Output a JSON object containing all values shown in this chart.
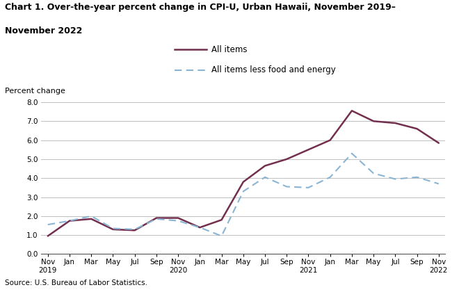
{
  "title_line1": "Chart 1. Over-the-year percent change in CPI-U, Urban Hawaii, November 2019–",
  "title_line2": "November 2022",
  "ylabel": "Percent change",
  "source": "Source: U.S. Bureau of Labor Statistics.",
  "ylim": [
    0.0,
    8.0
  ],
  "yticks": [
    0.0,
    1.0,
    2.0,
    3.0,
    4.0,
    5.0,
    6.0,
    7.0,
    8.0
  ],
  "x_labels": [
    "Nov\n2019",
    "Jan",
    "Mar",
    "May",
    "Jul",
    "Sep",
    "Nov\n2020",
    "Jan",
    "Mar",
    "May",
    "Jul",
    "Sep",
    "Nov\n2021",
    "Jan",
    "Mar",
    "May",
    "Jul",
    "Sep",
    "Nov\n2022"
  ],
  "all_items": [
    0.95,
    1.75,
    1.85,
    1.3,
    1.25,
    1.9,
    1.9,
    1.4,
    1.8,
    3.8,
    4.65,
    5.0,
    5.5,
    6.0,
    7.55,
    7.0,
    6.9,
    6.6,
    5.85
  ],
  "core_items": [
    1.55,
    1.75,
    2.0,
    1.35,
    1.3,
    1.85,
    1.75,
    1.4,
    0.95,
    3.3,
    4.05,
    3.55,
    3.5,
    4.05,
    5.3,
    4.25,
    3.95,
    4.05,
    3.7
  ],
  "all_items_color": "#722F4E",
  "core_items_color": "#8AB4D4",
  "background_color": "#ffffff",
  "grid_color": "#c0c0c0"
}
